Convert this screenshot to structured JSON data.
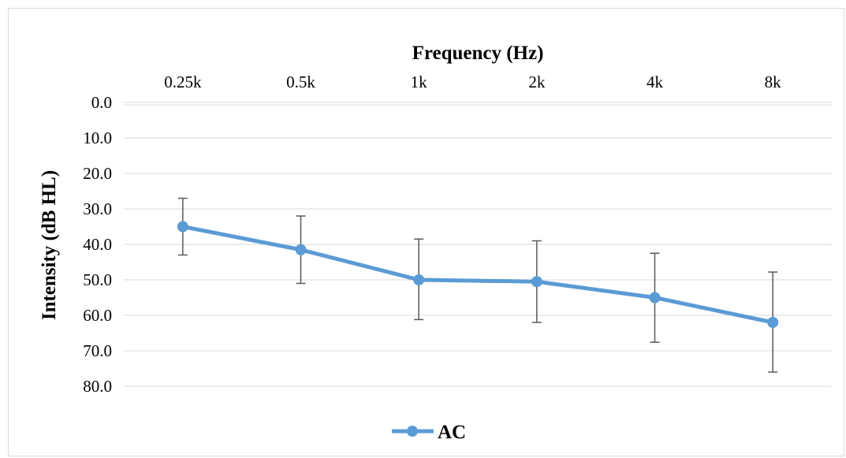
{
  "chart_data": {
    "type": "line",
    "title": "",
    "xlabel": "Frequency (Hz)",
    "ylabel": "Intensity (dB HL)",
    "categories": [
      "0.25k",
      "0.5k",
      "1k",
      "2k",
      "4k",
      "8k"
    ],
    "ylim": [
      0,
      80
    ],
    "y_inverted": true,
    "y_ticks": [
      "0.0",
      "10.0",
      "20.0",
      "30.0",
      "40.0",
      "50.0",
      "60.0",
      "70.0",
      "80.0"
    ],
    "x_axis_position": "top",
    "grid": true,
    "legend": "bottom",
    "series": [
      {
        "name": "AC",
        "color": "#5b9bd5",
        "values": [
          35.0,
          41.5,
          50.0,
          50.5,
          55.0,
          62.0
        ],
        "error_low": [
          27.0,
          32.0,
          38.5,
          39.0,
          42.5,
          47.8
        ],
        "error_high": [
          43.0,
          51.0,
          61.2,
          62.0,
          67.6,
          76.0
        ]
      }
    ],
    "error_bar_color": "#595959"
  }
}
